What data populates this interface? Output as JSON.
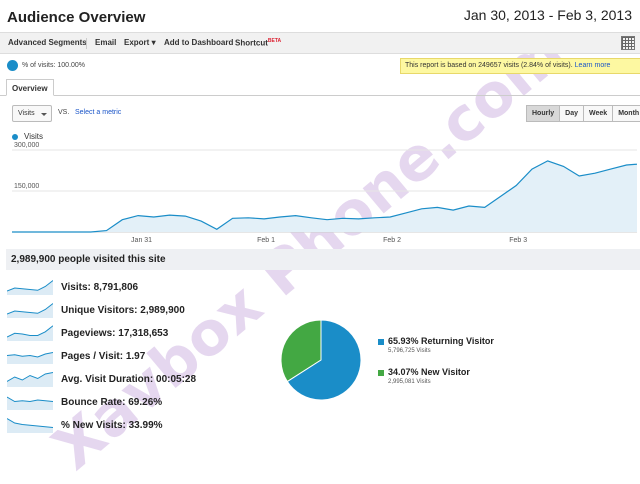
{
  "header": {
    "title": "Audience Overview",
    "date_range": "Jan 30, 2013 - Feb 3, 2013"
  },
  "toolbar": {
    "advanced_segments": "Advanced Segments",
    "email": "Email",
    "export": "Export",
    "add_to_dashboard": "Add to Dashboard",
    "shortcut": "Shortcut",
    "shortcut_badge": "BETA"
  },
  "segment": {
    "label": "% of visits: 100.00%"
  },
  "notice": {
    "text": "This report is based on 249657 visits (2.84% of visits).",
    "link": "Learn more"
  },
  "tabs": [
    {
      "label": "Overview"
    }
  ],
  "controls": {
    "metric": "Visits",
    "vs": "VS.",
    "select_metric": "Select a metric",
    "periods": [
      "Hourly",
      "Day",
      "Week",
      "Month"
    ],
    "active_period": "Hourly"
  },
  "chart_data": {
    "type": "area",
    "series": [
      {
        "name": "Visits",
        "color": "#1a8dc8"
      }
    ],
    "ytick_labels": [
      "300,000",
      "150,000"
    ],
    "ylim": [
      0,
      300000
    ],
    "xtick_labels": [
      "Jan 31",
      "Feb 1",
      "Feb 2",
      "Feb 3"
    ],
    "x_hours": [
      0,
      3,
      6,
      9,
      12,
      15,
      18,
      21,
      24,
      27,
      30,
      33,
      36,
      39,
      42,
      45,
      48,
      51,
      54,
      57,
      60,
      63,
      66,
      69,
      72,
      75,
      78,
      81,
      84,
      87,
      90,
      93,
      96,
      99,
      102,
      105,
      108,
      111,
      114,
      117,
      119
    ],
    "values": [
      0,
      0,
      0,
      0,
      0,
      0,
      5000,
      45000,
      60000,
      55000,
      62000,
      58000,
      40000,
      10000,
      50000,
      52000,
      48000,
      55000,
      60000,
      52000,
      45000,
      50000,
      48000,
      52000,
      55000,
      70000,
      85000,
      90000,
      80000,
      95000,
      90000,
      130000,
      170000,
      230000,
      260000,
      240000,
      205000,
      215000,
      230000,
      245000,
      248000
    ]
  },
  "summary": {
    "visitors": "2,989,900 people visited this site"
  },
  "metrics": [
    {
      "label": "Visits: 8,791,806"
    },
    {
      "label": "Unique Visitors: 2,989,900"
    },
    {
      "label": "Pageviews: 17,318,653"
    },
    {
      "label": "Pages / Visit: 1.97"
    },
    {
      "label": "Avg. Visit Duration: 00:05:28"
    },
    {
      "label": "Bounce Rate: 69.26%"
    },
    {
      "label": "% New Visits: 33.99%"
    }
  ],
  "pie": {
    "slices": [
      {
        "label": "65.93% Returning Visitor",
        "sub": "5,796,725 Visits",
        "value": 65.93,
        "color": "#1a8dc8"
      },
      {
        "label": "34.07% New Visitor",
        "sub": "2,995,081 Visits",
        "value": 34.07,
        "color": "#43a843"
      }
    ]
  },
  "watermark": "Xavbox Phone.com"
}
